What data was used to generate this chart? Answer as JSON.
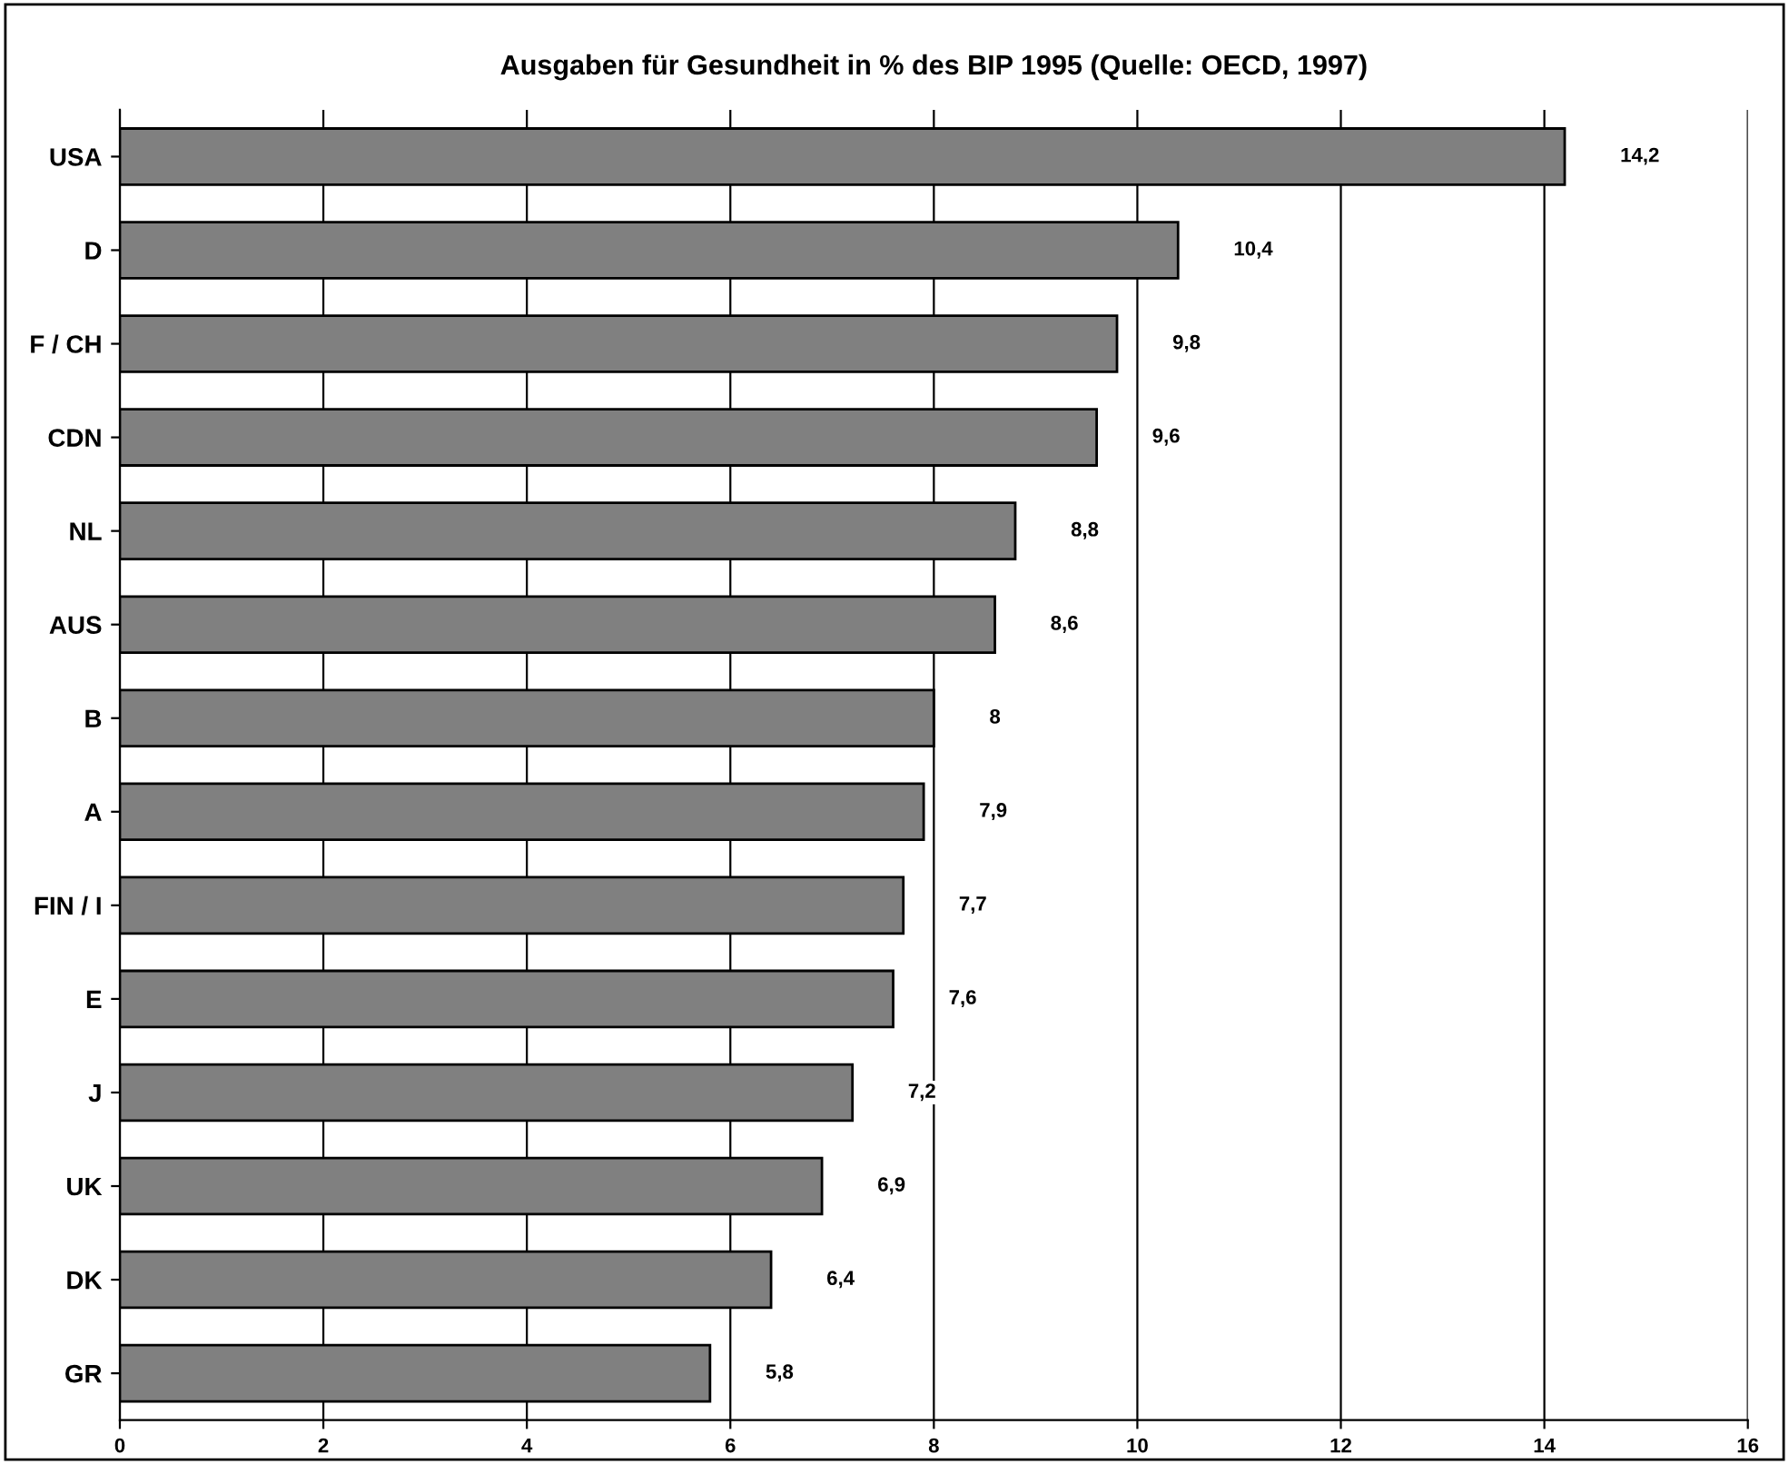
{
  "chart_data": {
    "type": "bar",
    "orientation": "horizontal",
    "title": "Ausgaben für Gesundheit in % des BIP 1995 (Quelle: OECD, 1997)",
    "categories": [
      "USA",
      "D",
      "F / CH",
      "CDN",
      "NL",
      "AUS",
      "B",
      "A",
      "FIN / I",
      "E",
      "J",
      "UK",
      "DK",
      "GR"
    ],
    "values": [
      14.2,
      10.4,
      9.8,
      9.6,
      8.8,
      8.6,
      8,
      7.9,
      7.7,
      7.6,
      7.2,
      6.9,
      6.4,
      5.8
    ],
    "value_labels": [
      "14,2",
      "10,4",
      "9,8",
      "9,6",
      "8,8",
      "8,6",
      "8",
      "7,9",
      "7,7",
      "7,6",
      "7,2",
      "6,9",
      "6,4",
      "5,8"
    ],
    "color": "#808080",
    "xlim": [
      0,
      16
    ],
    "xticks": [
      0,
      2,
      4,
      6,
      8,
      10,
      12,
      14,
      16
    ],
    "grid": "x",
    "legend": false
  }
}
